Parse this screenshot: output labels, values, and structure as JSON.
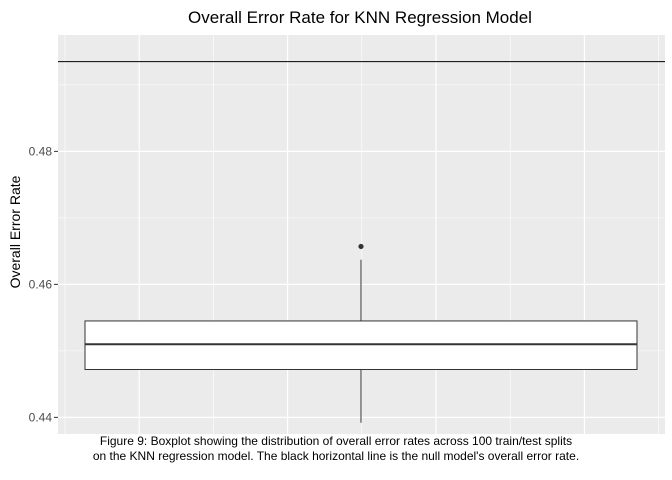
{
  "chart_data": {
    "type": "boxplot",
    "title": "Overall Error Rate for KNN Regression Model",
    "xlabel": "",
    "ylabel": "Overall Error Rate",
    "ylim": [
      0.4375,
      0.4975
    ],
    "yticks": [
      0.44,
      0.46,
      0.48
    ],
    "ytick_labels": [
      "0.44",
      "0.46",
      "0.48"
    ],
    "grid": true,
    "legend": "none",
    "box": {
      "min": 0.4392,
      "q1": 0.4472,
      "median": 0.451,
      "q3": 0.4545,
      "max": 0.4637,
      "outliers": [
        0.4657
      ]
    },
    "reference_line": {
      "y": 0.4935,
      "color": "#000000"
    }
  },
  "caption": {
    "line1": "Figure 9: Boxplot showing the distribution of overall error rates across 100 train/test splits",
    "line2": "on the KNN regression model. The black horizontal line is the null model's overall error rate."
  },
  "colors": {
    "panel_bg": "#ebebeb",
    "grid_major": "#ffffff",
    "box_fill": "#ffffff",
    "box_stroke": "#333333",
    "outlier": "#333333"
  }
}
